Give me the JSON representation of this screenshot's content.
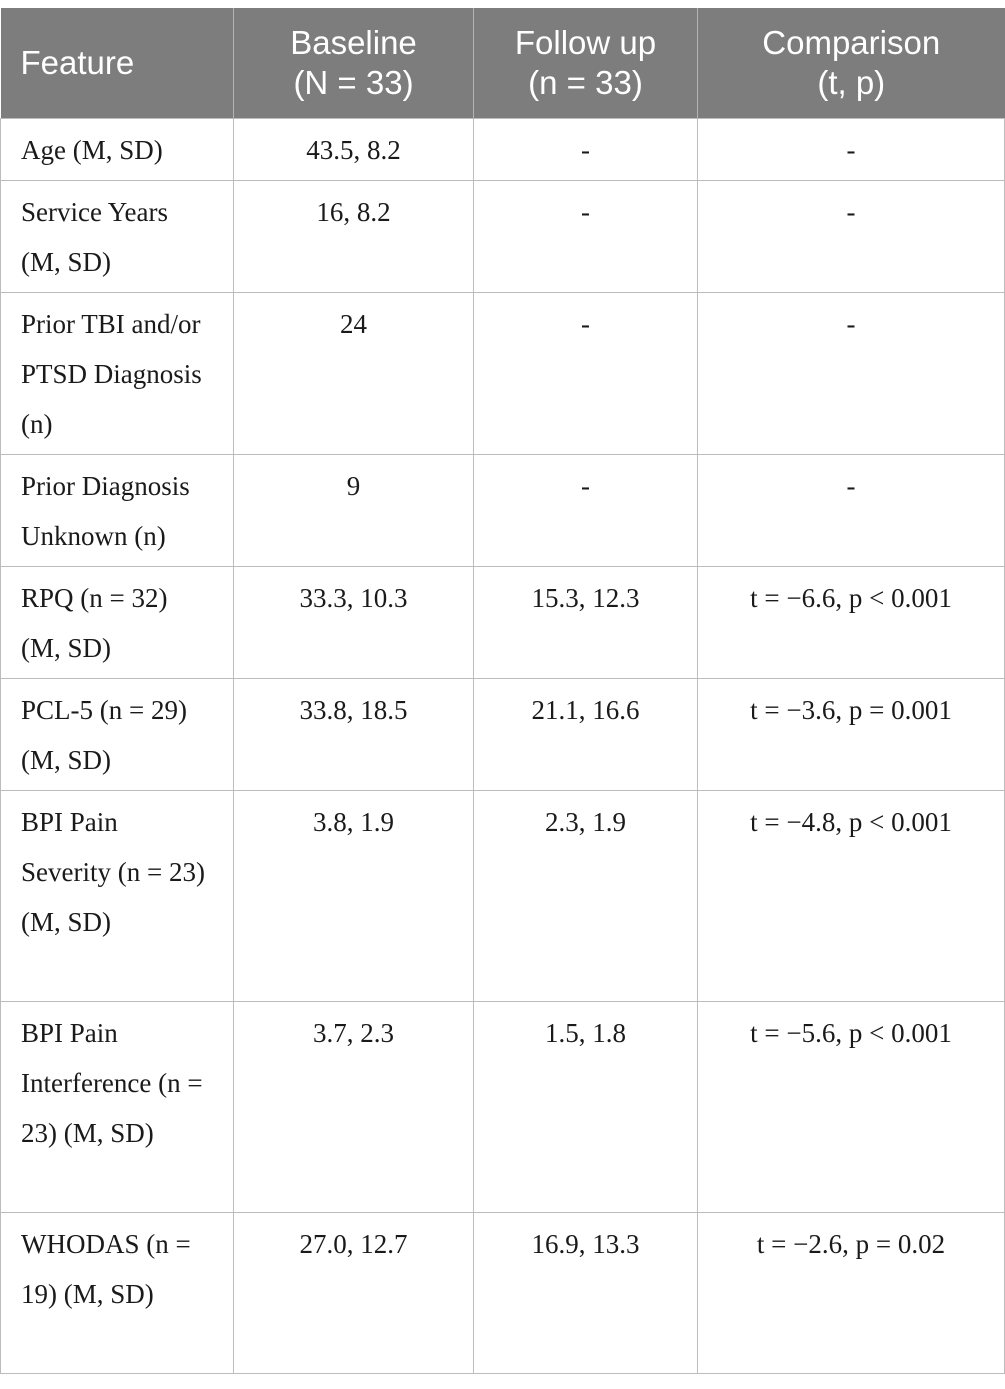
{
  "table": {
    "headers": [
      {
        "line1": "Feature",
        "line2": ""
      },
      {
        "line1": "Baseline",
        "line2": "(N = 33)"
      },
      {
        "line1": "Follow up",
        "line2": "(n = 33)"
      },
      {
        "line1": "Comparison",
        "line2": "(t, p)"
      }
    ],
    "rows": [
      {
        "feature": "Age (M, SD)",
        "baseline": "43.5, 8.2",
        "followup": "-",
        "comparison": "-"
      },
      {
        "feature": "Service Years (M, SD)",
        "baseline": "16, 8.2",
        "followup": "-",
        "comparison": "-"
      },
      {
        "feature": "Prior TBI and/or PTSD Diagnosis (n)",
        "baseline": "24",
        "followup": "-",
        "comparison": "-"
      },
      {
        "feature": "Prior Diagnosis Unknown (n)",
        "baseline": "9",
        "followup": "-",
        "comparison": "-"
      },
      {
        "feature": "RPQ (n = 32) (M, SD)",
        "baseline": "33.3, 10.3",
        "followup": "15.3, 12.3",
        "comparison": "t = −6.6, p < 0.001"
      },
      {
        "feature": "PCL-5 (n = 29) (M, SD)",
        "baseline": "33.8, 18.5",
        "followup": "21.1, 16.6",
        "comparison": "t = −3.6, p = 0.001"
      },
      {
        "feature": "BPI Pain Severity (n = 23) (M, SD)",
        "baseline": "3.8, 1.9",
        "followup": "2.3, 1.9",
        "comparison": "t = −4.8, p < 0.001"
      },
      {
        "feature": "BPI Pain Interference (n = 23) (M, SD)",
        "baseline": "3.7, 2.3",
        "followup": "1.5, 1.8",
        "comparison": "t = −5.6, p < 0.001"
      },
      {
        "feature": "WHODAS (n = 19) (M, SD)",
        "baseline": "27.0, 12.7",
        "followup": "16.9, 13.3",
        "comparison": "t = −2.6, p = 0.02"
      }
    ]
  }
}
